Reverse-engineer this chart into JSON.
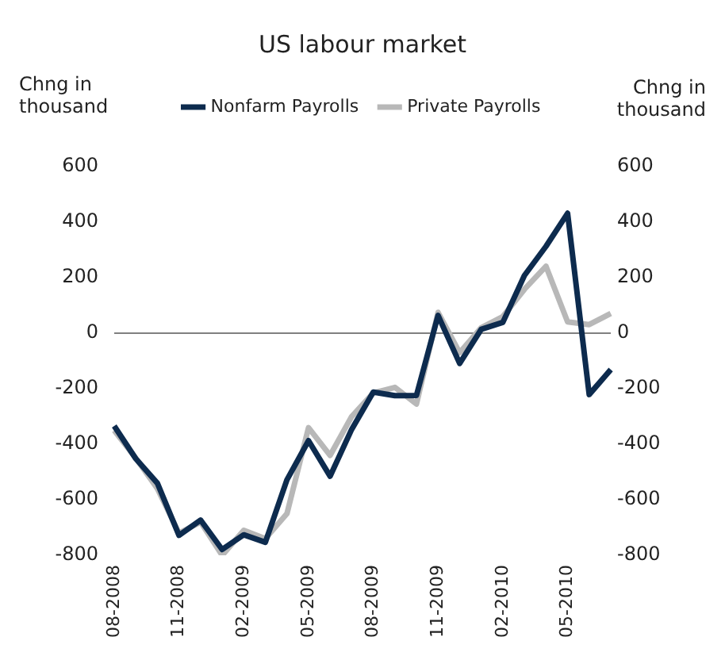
{
  "chart_data": {
    "type": "line",
    "title": "US labour market",
    "ylabel": "Chng in thousand",
    "y2label": "Chng in thousand",
    "categories": [
      "08-2008",
      null,
      null,
      "11-2008",
      null,
      null,
      "02-2009",
      null,
      null,
      "05-2009",
      null,
      null,
      "08-2009",
      null,
      null,
      "11-2009",
      null,
      null,
      "02-2010",
      null,
      null,
      "05-2010",
      null,
      null
    ],
    "series": [
      {
        "name": "Nonfarm Payrolls",
        "color": "#0d2b4e",
        "values": [
          -334,
          -452,
          -540,
          -728,
          -673,
          -779,
          -726,
          -753,
          -528,
          -387,
          -515,
          -346,
          -212,
          -225,
          -224,
          64,
          -109,
          14,
          39,
          208,
          313,
          432,
          -221,
          -131
        ]
      },
      {
        "name": "Private Payrolls",
        "color": "#b8b8b8",
        "values": [
          -350,
          -450,
          -560,
          -720,
          -680,
          -800,
          -710,
          -740,
          -650,
          -340,
          -440,
          -300,
          -215,
          -195,
          -255,
          75,
          -70,
          20,
          60,
          158,
          241,
          41,
          31,
          71
        ]
      }
    ],
    "ylim": [
      -800,
      600
    ],
    "yticks": [
      -800,
      -600,
      -400,
      -200,
      0,
      200,
      400,
      600
    ],
    "y2lim": [
      -800,
      600
    ],
    "y2ticks": [
      -800,
      -600,
      -400,
      -200,
      0,
      200,
      400,
      600
    ],
    "ref_lines": [
      {
        "axis": "y",
        "value": 0,
        "color": "#808080"
      }
    ],
    "legend": "top",
    "grid": false,
    "marker": "none",
    "line_style": "solid"
  }
}
